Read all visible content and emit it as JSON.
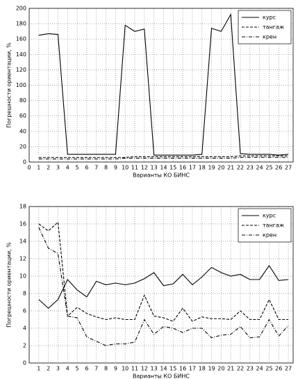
{
  "chart_data": [
    {
      "type": "line",
      "xlabel": "Варианты КО БИНС",
      "ylabel": "Погрешности ориентации, %",
      "x": [
        1,
        2,
        3,
        4,
        5,
        6,
        7,
        8,
        9,
        10,
        11,
        12,
        13,
        14,
        15,
        16,
        17,
        18,
        19,
        20,
        21,
        22,
        23,
        24,
        25,
        26,
        27
      ],
      "xlim": [
        0,
        27.5
      ],
      "xticks": [
        0,
        1,
        2,
        3,
        4,
        5,
        6,
        7,
        8,
        9,
        10,
        11,
        12,
        13,
        14,
        15,
        16,
        17,
        18,
        19,
        20,
        21,
        22,
        23,
        24,
        25,
        26,
        27
      ],
      "ylim": [
        0,
        200
      ],
      "yticks": [
        0,
        20,
        40,
        60,
        80,
        100,
        120,
        140,
        160,
        180,
        200
      ],
      "grid": true,
      "legend": "upper right",
      "series": [
        {
          "name": "курс",
          "color": "#000000",
          "linestyle": "solid",
          "values": [
            165,
            167,
            166,
            10,
            10,
            10,
            10,
            10,
            10,
            178,
            170,
            173,
            9,
            9,
            9,
            9,
            9,
            10,
            174,
            170,
            192,
            11,
            10,
            10,
            10,
            9,
            10
          ]
        },
        {
          "name": "тангаж",
          "color": "#000000",
          "linestyle": "dashed",
          "values": [
            6,
            6,
            6,
            6,
            6,
            6,
            6,
            6,
            6,
            6,
            7,
            7,
            7,
            7,
            7,
            7,
            7,
            7,
            7,
            7,
            7,
            8,
            8,
            8,
            8,
            8,
            8
          ]
        },
        {
          "name": "крен",
          "color": "#000000",
          "linestyle": "dashdot",
          "values": [
            4,
            4,
            4,
            4,
            4,
            4,
            4,
            4,
            4,
            5,
            5,
            5,
            5,
            5,
            5,
            5,
            5,
            5,
            5,
            5,
            5,
            6,
            6,
            6,
            6,
            6,
            6
          ]
        }
      ]
    },
    {
      "type": "line",
      "xlabel": "Варианты КО БИНС",
      "ylabel": "Погрешности ориентации, %",
      "x": [
        1,
        2,
        3,
        4,
        5,
        6,
        7,
        8,
        9,
        10,
        11,
        12,
        13,
        14,
        15,
        16,
        17,
        18,
        19,
        20,
        21,
        22,
        23,
        24,
        25,
        26,
        27
      ],
      "xlim": [
        0,
        27.5
      ],
      "xticks": [
        1,
        2,
        3,
        4,
        5,
        6,
        7,
        8,
        9,
        10,
        11,
        12,
        13,
        14,
        15,
        16,
        17,
        18,
        19,
        20,
        21,
        22,
        23,
        24,
        25,
        26,
        27
      ],
      "ylim": [
        0,
        18
      ],
      "yticks": [
        0,
        2,
        4,
        6,
        8,
        10,
        12,
        14,
        16,
        18
      ],
      "grid": true,
      "legend": "upper right",
      "series": [
        {
          "name": "курс",
          "color": "#000000",
          "linestyle": "solid",
          "values": [
            7.3,
            6.3,
            7.3,
            9.6,
            8.4,
            7.6,
            9.4,
            9.0,
            9.2,
            9.0,
            9.2,
            9.7,
            10.4,
            8.9,
            9.1,
            10.2,
            9.0,
            9.9,
            11.0,
            10.4,
            10.0,
            10.2,
            9.6,
            9.6,
            11.2,
            9.5,
            9.6
          ]
        },
        {
          "name": "тангаж",
          "color": "#000000",
          "linestyle": "dashed",
          "values": [
            16.0,
            15.2,
            16.2,
            5.4,
            6.4,
            5.7,
            5.3,
            5.0,
            5.2,
            5.0,
            5.0,
            7.8,
            5.4,
            5.2,
            4.8,
            6.3,
            4.8,
            5.3,
            5.1,
            5.1,
            5.0,
            6.0,
            5.0,
            5.0,
            7.3,
            5.0,
            5.0
          ]
        },
        {
          "name": "крен",
          "color": "#000000",
          "linestyle": "dashdot",
          "values": [
            15.6,
            13.2,
            12.6,
            5.4,
            5.2,
            3.0,
            2.5,
            2.0,
            2.2,
            2.2,
            2.4,
            5.0,
            3.3,
            4.2,
            4.0,
            3.5,
            4.0,
            4.0,
            2.9,
            3.2,
            3.3,
            4.2,
            2.9,
            3.0,
            5.0,
            3.1,
            4.3
          ]
        }
      ]
    }
  ]
}
